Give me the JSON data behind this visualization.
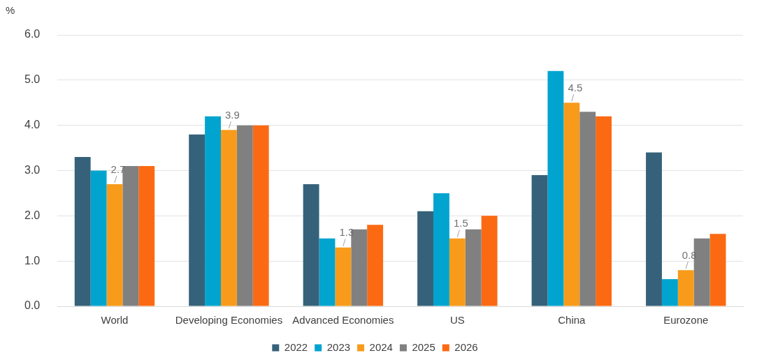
{
  "chart_data": {
    "type": "bar",
    "ylabel": "%",
    "categories": [
      "World",
      "Developing Economies",
      "Advanced Economies",
      "US",
      "China",
      "Eurozone"
    ],
    "series": [
      {
        "name": "2022",
        "color": "#35627a",
        "values": [
          3.3,
          3.8,
          2.7,
          2.1,
          2.9,
          3.4
        ]
      },
      {
        "name": "2023",
        "color": "#00a4cf",
        "values": [
          3.0,
          4.2,
          1.5,
          2.5,
          5.2,
          0.6
        ]
      },
      {
        "name": "2024",
        "color": "#f89b1a",
        "values": [
          2.7,
          3.9,
          1.3,
          1.5,
          4.5,
          0.8
        ],
        "value_labels": [
          "2.7",
          "3.9",
          "1.3",
          "1.5",
          "4.5",
          "0.8"
        ]
      },
      {
        "name": "2025",
        "color": "#808080",
        "values": [
          3.1,
          4.0,
          1.7,
          1.7,
          4.3,
          1.5
        ]
      },
      {
        "name": "2026",
        "color": "#fb6a12",
        "values": [
          3.1,
          4.0,
          1.8,
          2.0,
          4.2,
          1.6
        ]
      }
    ],
    "ylim": [
      0,
      6
    ],
    "yticks": [
      {
        "value": 0,
        "label": "0.0"
      },
      {
        "value": 1,
        "label": "1.0"
      },
      {
        "value": 2,
        "label": "2.0"
      },
      {
        "value": 3,
        "label": "3.0"
      },
      {
        "value": 4,
        "label": "4.0"
      },
      {
        "value": 5,
        "label": "5.0"
      },
      {
        "value": 6,
        "label": "6.0"
      }
    ],
    "grid": "y",
    "legend": "bottom"
  }
}
